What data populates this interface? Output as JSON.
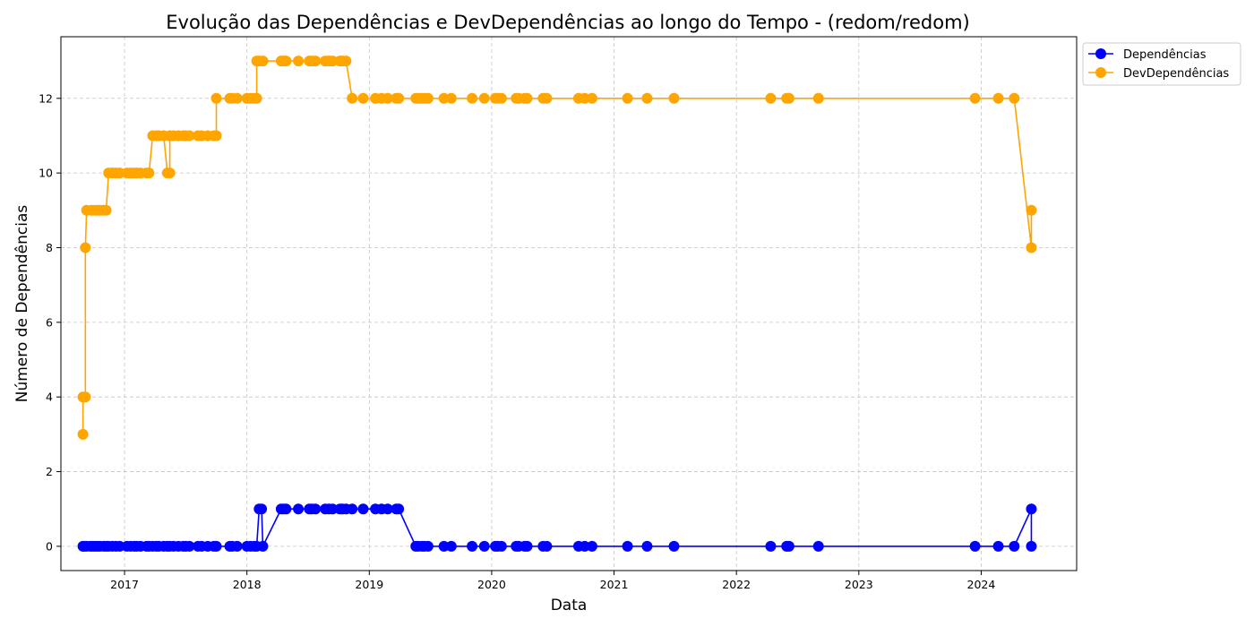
{
  "chart_data": {
    "type": "line",
    "title": "Evolução das Dependências e DevDependências ao longo do Tempo - (redom/redom)",
    "xlabel": "Data",
    "ylabel": "Número de Dependências",
    "xlim": [
      2016.48,
      2024.78
    ],
    "ylim": [
      -0.65,
      13.65
    ],
    "x_ticks": [
      "2017",
      "2018",
      "2019",
      "2020",
      "2021",
      "2022",
      "2023",
      "2024"
    ],
    "y_ticks": [
      "0",
      "2",
      "4",
      "6",
      "8",
      "10",
      "12"
    ],
    "grid": true,
    "legend_position": "outside-top-right",
    "series": [
      {
        "name": "Dependências",
        "color": "#0000ff",
        "points": [
          [
            2016.66,
            0
          ],
          [
            2016.67,
            0
          ],
          [
            2016.69,
            0
          ],
          [
            2016.72,
            0
          ],
          [
            2016.74,
            0
          ],
          [
            2016.76,
            0
          ],
          [
            2016.78,
            0
          ],
          [
            2016.8,
            0
          ],
          [
            2016.83,
            0
          ],
          [
            2016.85,
            0
          ],
          [
            2016.87,
            0
          ],
          [
            2016.9,
            0
          ],
          [
            2016.93,
            0
          ],
          [
            2016.96,
            0
          ],
          [
            2017.02,
            0
          ],
          [
            2017.05,
            0
          ],
          [
            2017.08,
            0
          ],
          [
            2017.1,
            0
          ],
          [
            2017.13,
            0
          ],
          [
            2017.18,
            0
          ],
          [
            2017.2,
            0
          ],
          [
            2017.23,
            0
          ],
          [
            2017.26,
            0
          ],
          [
            2017.28,
            0
          ],
          [
            2017.32,
            0
          ],
          [
            2017.35,
            0
          ],
          [
            2017.37,
            0
          ],
          [
            2017.4,
            0
          ],
          [
            2017.44,
            0
          ],
          [
            2017.48,
            0
          ],
          [
            2017.5,
            0
          ],
          [
            2017.53,
            0
          ],
          [
            2017.6,
            0
          ],
          [
            2017.63,
            0
          ],
          [
            2017.68,
            0
          ],
          [
            2017.73,
            0
          ],
          [
            2017.75,
            0
          ],
          [
            2017.86,
            0
          ],
          [
            2017.88,
            0
          ],
          [
            2017.92,
            0
          ],
          [
            2018.0,
            0
          ],
          [
            2018.03,
            0
          ],
          [
            2018.06,
            0
          ],
          [
            2018.08,
            0
          ],
          [
            2018.1,
            1
          ],
          [
            2018.12,
            1
          ],
          [
            2018.13,
            0
          ],
          [
            2018.28,
            1
          ],
          [
            2018.3,
            1
          ],
          [
            2018.32,
            1
          ],
          [
            2018.42,
            1
          ],
          [
            2018.51,
            1
          ],
          [
            2018.53,
            1
          ],
          [
            2018.56,
            1
          ],
          [
            2018.64,
            1
          ],
          [
            2018.67,
            1
          ],
          [
            2018.7,
            1
          ],
          [
            2018.76,
            1
          ],
          [
            2018.78,
            1
          ],
          [
            2018.81,
            1
          ],
          [
            2018.86,
            1
          ],
          [
            2018.95,
            1
          ],
          [
            2019.05,
            1
          ],
          [
            2019.1,
            1
          ],
          [
            2019.15,
            1
          ],
          [
            2019.22,
            1
          ],
          [
            2019.24,
            1
          ],
          [
            2019.38,
            0
          ],
          [
            2019.4,
            0
          ],
          [
            2019.43,
            0
          ],
          [
            2019.45,
            0
          ],
          [
            2019.48,
            0
          ],
          [
            2019.61,
            0
          ],
          [
            2019.67,
            0
          ],
          [
            2019.84,
            0
          ],
          [
            2019.94,
            0
          ],
          [
            2020.03,
            0
          ],
          [
            2020.05,
            0
          ],
          [
            2020.08,
            0
          ],
          [
            2020.2,
            0
          ],
          [
            2020.22,
            0
          ],
          [
            2020.27,
            0
          ],
          [
            2020.29,
            0
          ],
          [
            2020.42,
            0
          ],
          [
            2020.45,
            0
          ],
          [
            2020.71,
            0
          ],
          [
            2020.76,
            0
          ],
          [
            2020.82,
            0
          ],
          [
            2021.11,
            0
          ],
          [
            2021.27,
            0
          ],
          [
            2021.49,
            0
          ],
          [
            2022.28,
            0
          ],
          [
            2022.41,
            0
          ],
          [
            2022.43,
            0
          ],
          [
            2022.67,
            0
          ],
          [
            2023.95,
            0
          ],
          [
            2024.14,
            0
          ],
          [
            2024.27,
            0
          ],
          [
            2024.41,
            1
          ],
          [
            2024.41,
            0
          ]
        ]
      },
      {
        "name": "DevDependências",
        "color": "#ffa500",
        "points": [
          [
            2016.66,
            3
          ],
          [
            2016.66,
            4
          ],
          [
            2016.68,
            4
          ],
          [
            2016.68,
            8
          ],
          [
            2016.69,
            9
          ],
          [
            2016.73,
            9
          ],
          [
            2016.76,
            9
          ],
          [
            2016.78,
            9
          ],
          [
            2016.8,
            9
          ],
          [
            2016.83,
            9
          ],
          [
            2016.85,
            9
          ],
          [
            2016.87,
            10
          ],
          [
            2016.9,
            10
          ],
          [
            2016.93,
            10
          ],
          [
            2016.96,
            10
          ],
          [
            2017.02,
            10
          ],
          [
            2017.05,
            10
          ],
          [
            2017.08,
            10
          ],
          [
            2017.1,
            10
          ],
          [
            2017.13,
            10
          ],
          [
            2017.18,
            10
          ],
          [
            2017.2,
            10
          ],
          [
            2017.23,
            11
          ],
          [
            2017.26,
            11
          ],
          [
            2017.28,
            11
          ],
          [
            2017.32,
            11
          ],
          [
            2017.35,
            10
          ],
          [
            2017.37,
            10
          ],
          [
            2017.37,
            11
          ],
          [
            2017.4,
            11
          ],
          [
            2017.44,
            11
          ],
          [
            2017.48,
            11
          ],
          [
            2017.5,
            11
          ],
          [
            2017.53,
            11
          ],
          [
            2017.6,
            11
          ],
          [
            2017.63,
            11
          ],
          [
            2017.68,
            11
          ],
          [
            2017.73,
            11
          ],
          [
            2017.75,
            11
          ],
          [
            2017.75,
            12
          ],
          [
            2017.86,
            12
          ],
          [
            2017.88,
            12
          ],
          [
            2017.92,
            12
          ],
          [
            2018.0,
            12
          ],
          [
            2018.03,
            12
          ],
          [
            2018.06,
            12
          ],
          [
            2018.08,
            12
          ],
          [
            2018.08,
            13
          ],
          [
            2018.1,
            13
          ],
          [
            2018.13,
            13
          ],
          [
            2018.28,
            13
          ],
          [
            2018.3,
            13
          ],
          [
            2018.32,
            13
          ],
          [
            2018.42,
            13
          ],
          [
            2018.51,
            13
          ],
          [
            2018.53,
            13
          ],
          [
            2018.56,
            13
          ],
          [
            2018.64,
            13
          ],
          [
            2018.67,
            13
          ],
          [
            2018.7,
            13
          ],
          [
            2018.76,
            13
          ],
          [
            2018.78,
            13
          ],
          [
            2018.81,
            13
          ],
          [
            2018.86,
            12
          ],
          [
            2018.95,
            12
          ],
          [
            2019.05,
            12
          ],
          [
            2019.1,
            12
          ],
          [
            2019.15,
            12
          ],
          [
            2019.22,
            12
          ],
          [
            2019.24,
            12
          ],
          [
            2019.38,
            12
          ],
          [
            2019.4,
            12
          ],
          [
            2019.43,
            12
          ],
          [
            2019.45,
            12
          ],
          [
            2019.48,
            12
          ],
          [
            2019.61,
            12
          ],
          [
            2019.67,
            12
          ],
          [
            2019.84,
            12
          ],
          [
            2019.94,
            12
          ],
          [
            2020.03,
            12
          ],
          [
            2020.05,
            12
          ],
          [
            2020.08,
            12
          ],
          [
            2020.2,
            12
          ],
          [
            2020.22,
            12
          ],
          [
            2020.27,
            12
          ],
          [
            2020.29,
            12
          ],
          [
            2020.42,
            12
          ],
          [
            2020.45,
            12
          ],
          [
            2020.71,
            12
          ],
          [
            2020.76,
            12
          ],
          [
            2020.82,
            12
          ],
          [
            2021.11,
            12
          ],
          [
            2021.27,
            12
          ],
          [
            2021.49,
            12
          ],
          [
            2022.28,
            12
          ],
          [
            2022.41,
            12
          ],
          [
            2022.43,
            12
          ],
          [
            2022.67,
            12
          ],
          [
            2023.95,
            12
          ],
          [
            2024.14,
            12
          ],
          [
            2024.27,
            12
          ],
          [
            2024.41,
            8
          ],
          [
            2024.41,
            9
          ]
        ]
      }
    ]
  }
}
